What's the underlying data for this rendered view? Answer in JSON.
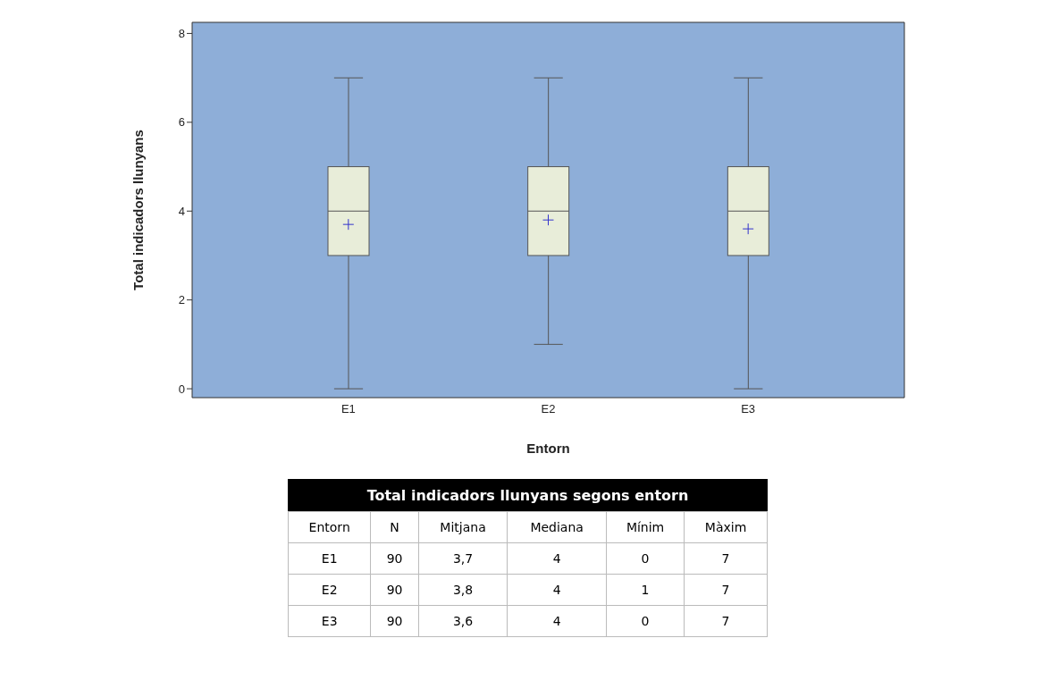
{
  "chart_data": [
    {
      "type": "box",
      "xlabel": "Entorn",
      "ylabel": "Total indicadors llunyans",
      "categories": [
        "E1",
        "E2",
        "E3"
      ],
      "color": "#e8edd9",
      "marker": "cross",
      "ylim": [
        -0.2,
        8.25
      ],
      "yticks": [
        0,
        2,
        4,
        6,
        8
      ],
      "boxes": [
        {
          "low": 0,
          "q1": 3,
          "median": 4,
          "q3": 5,
          "high": 7,
          "mean": 3.7
        },
        {
          "low": 1,
          "q1": 3,
          "median": 4,
          "q3": 5,
          "high": 7,
          "mean": 3.8
        },
        {
          "low": 0,
          "q1": 3,
          "median": 4,
          "q3": 5,
          "high": 7,
          "mean": 3.6
        }
      ]
    },
    {
      "type": "other",
      "data_labels": true,
      "title": "Total indicadors llunyans segons entorn",
      "xlabel": "Entorn",
      "categories": [
        "E1",
        "E2",
        "E3"
      ],
      "series": [
        {
          "name": "N",
          "values": [
            90,
            90,
            90
          ]
        },
        {
          "name": "Mitjana",
          "values": [
            3.7,
            3.8,
            3.6
          ],
          "value_labels": [
            "3,7",
            "3,8",
            "3,6"
          ]
        },
        {
          "name": "Mediana",
          "values": [
            4,
            4,
            4
          ]
        },
        {
          "name": "Mínim",
          "values": [
            0,
            1,
            0
          ]
        },
        {
          "name": "Màxim",
          "values": [
            7,
            7,
            7
          ]
        }
      ]
    }
  ]
}
